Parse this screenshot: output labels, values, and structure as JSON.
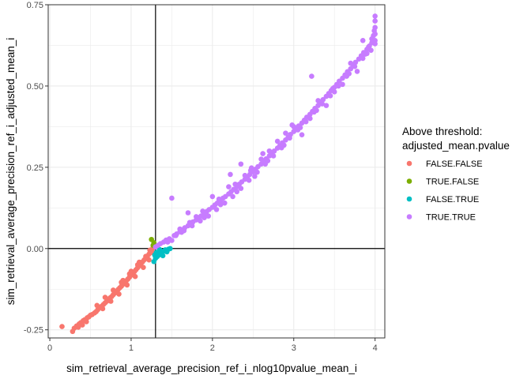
{
  "chart_data": {
    "type": "scatter",
    "xlabel": "sim_retrieval_average_precision_ref_i_nlog10pvalue_mean_i",
    "ylabel": "sim_retrieval_average_precision_ref_i_adjusted_mean_i",
    "xlim": [
      -0.02,
      4.12
    ],
    "ylim": [
      -0.275,
      0.75
    ],
    "x_ticks": [
      0,
      1,
      2,
      3,
      4
    ],
    "x_tick_labels": [
      "0",
      "1",
      "2",
      "3",
      "4"
    ],
    "y_ticks": [
      -0.25,
      0,
      0.25,
      0.5,
      0.75
    ],
    "y_tick_labels": [
      "-0.25",
      "0.00",
      "0.25",
      "0.50",
      "0.75"
    ],
    "grid": true,
    "reference_lines": {
      "vline_x": 1.3,
      "hline_y": 0
    },
    "legend": {
      "title_lines": [
        "Above threshold:",
        "adjusted_mean.pvalue"
      ],
      "position": "right"
    },
    "series": [
      {
        "name": "FALSE.FALSE",
        "color": "#F8766D",
        "points": [
          [
            0.15,
            -0.24
          ],
          [
            0.28,
            -0.255
          ],
          [
            0.3,
            -0.245
          ],
          [
            0.33,
            -0.238
          ],
          [
            0.36,
            -0.232
          ],
          [
            0.38,
            -0.228
          ],
          [
            0.41,
            -0.222
          ],
          [
            0.43,
            -0.219
          ],
          [
            0.46,
            -0.213
          ],
          [
            0.48,
            -0.21
          ],
          [
            0.5,
            -0.205
          ],
          [
            0.52,
            -0.203
          ],
          [
            0.55,
            -0.198
          ],
          [
            0.57,
            -0.194
          ],
          [
            0.59,
            -0.188
          ],
          [
            0.62,
            -0.18
          ],
          [
            0.64,
            -0.177
          ],
          [
            0.66,
            -0.172
          ],
          [
            0.68,
            -0.167
          ],
          [
            0.7,
            -0.162
          ],
          [
            0.72,
            -0.158
          ],
          [
            0.74,
            -0.152
          ],
          [
            0.76,
            -0.148
          ],
          [
            0.78,
            -0.142
          ],
          [
            0.8,
            -0.137
          ],
          [
            0.82,
            -0.132
          ],
          [
            0.84,
            -0.126
          ],
          [
            0.86,
            -0.121
          ],
          [
            0.88,
            -0.116
          ],
          [
            0.9,
            -0.11
          ],
          [
            0.92,
            -0.105
          ],
          [
            0.94,
            -0.099
          ],
          [
            0.96,
            -0.094
          ],
          [
            0.98,
            -0.088
          ],
          [
            1.0,
            -0.082
          ],
          [
            1.02,
            -0.076
          ],
          [
            1.04,
            -0.071
          ],
          [
            1.06,
            -0.065
          ],
          [
            1.08,
            -0.059
          ],
          [
            1.1,
            -0.053
          ],
          [
            1.12,
            -0.047
          ],
          [
            1.14,
            -0.041
          ],
          [
            1.16,
            -0.035
          ],
          [
            1.18,
            -0.029
          ],
          [
            1.2,
            -0.023
          ],
          [
            1.22,
            -0.017
          ],
          [
            1.24,
            -0.012
          ],
          [
            1.25,
            -0.006
          ],
          [
            1.26,
            -0.002
          ],
          [
            1.27,
            0.003
          ],
          [
            0.65,
            -0.185
          ],
          [
            0.75,
            -0.162
          ],
          [
            0.85,
            -0.14
          ],
          [
            0.95,
            -0.112
          ],
          [
            1.05,
            -0.086
          ],
          [
            1.15,
            -0.058
          ],
          [
            1.22,
            -0.035
          ],
          [
            0.9,
            -0.098
          ],
          [
            1.0,
            -0.07
          ],
          [
            1.1,
            -0.042
          ],
          [
            0.58,
            -0.175
          ],
          [
            0.45,
            -0.225
          ],
          [
            0.4,
            -0.235
          ],
          [
            0.35,
            -0.242
          ],
          [
            0.68,
            -0.15
          ],
          [
            0.78,
            -0.128
          ],
          [
            0.88,
            -0.104
          ],
          [
            0.98,
            -0.078
          ],
          [
            1.08,
            -0.05
          ],
          [
            1.18,
            -0.024
          ],
          [
            1.23,
            -0.005
          ],
          [
            1.26,
            -0.012
          ]
        ]
      },
      {
        "name": "TRUE.FALSE",
        "color": "#7CAE00",
        "points": [
          [
            1.25,
            0.028
          ],
          [
            1.28,
            0.018
          ],
          [
            1.27,
            0.01
          ]
        ]
      },
      {
        "name": "FALSE.TRUE",
        "color": "#00BFC4",
        "points": [
          [
            1.28,
            -0.04
          ],
          [
            1.3,
            -0.03
          ],
          [
            1.32,
            -0.025
          ],
          [
            1.34,
            -0.02
          ],
          [
            1.36,
            -0.012
          ],
          [
            1.38,
            -0.015
          ],
          [
            1.4,
            -0.008
          ],
          [
            1.42,
            -0.004
          ],
          [
            1.44,
            -0.01
          ],
          [
            1.46,
            -0.002
          ],
          [
            1.48,
            0.0
          ],
          [
            1.35,
            -0.003
          ],
          [
            1.31,
            -0.012
          ],
          [
            1.39,
            -0.022
          ],
          [
            1.29,
            -0.02
          ]
        ]
      },
      {
        "name": "TRUE.TRUE",
        "color": "#C77CFF",
        "points": [
          [
            1.3,
            0.005
          ],
          [
            1.33,
            0.01
          ],
          [
            1.36,
            0.015
          ],
          [
            1.4,
            0.02
          ],
          [
            1.43,
            0.026
          ],
          [
            1.47,
            0.03
          ],
          [
            1.5,
            0.025
          ],
          [
            1.53,
            0.04
          ],
          [
            1.56,
            0.045
          ],
          [
            1.6,
            0.052
          ],
          [
            1.63,
            0.058
          ],
          [
            1.66,
            0.064
          ],
          [
            1.7,
            0.07
          ],
          [
            1.73,
            0.076
          ],
          [
            1.76,
            0.082
          ],
          [
            1.8,
            0.088
          ],
          [
            1.83,
            0.095
          ],
          [
            1.86,
            0.1
          ],
          [
            1.9,
            0.108
          ],
          [
            1.93,
            0.114
          ],
          [
            1.96,
            0.12
          ],
          [
            2.0,
            0.127
          ],
          [
            2.03,
            0.134
          ],
          [
            2.06,
            0.14
          ],
          [
            2.1,
            0.148
          ],
          [
            2.13,
            0.155
          ],
          [
            2.16,
            0.16
          ],
          [
            2.2,
            0.168
          ],
          [
            2.23,
            0.175
          ],
          [
            2.26,
            0.182
          ],
          [
            2.3,
            0.19
          ],
          [
            2.33,
            0.198
          ],
          [
            2.36,
            0.205
          ],
          [
            2.4,
            0.213
          ],
          [
            2.43,
            0.22
          ],
          [
            2.46,
            0.228
          ],
          [
            2.5,
            0.236
          ],
          [
            2.53,
            0.244
          ],
          [
            2.56,
            0.252
          ],
          [
            2.6,
            0.26
          ],
          [
            2.63,
            0.268
          ],
          [
            2.66,
            0.276
          ],
          [
            2.7,
            0.285
          ],
          [
            2.73,
            0.292
          ],
          [
            2.76,
            0.3
          ],
          [
            2.8,
            0.309
          ],
          [
            2.83,
            0.317
          ],
          [
            2.86,
            0.325
          ],
          [
            2.9,
            0.334
          ],
          [
            2.93,
            0.342
          ],
          [
            2.96,
            0.351
          ],
          [
            3.0,
            0.36
          ],
          [
            3.03,
            0.368
          ],
          [
            3.06,
            0.377
          ],
          [
            3.1,
            0.386
          ],
          [
            3.13,
            0.395
          ],
          [
            3.16,
            0.404
          ],
          [
            3.2,
            0.413
          ],
          [
            3.23,
            0.422
          ],
          [
            3.26,
            0.431
          ],
          [
            3.3,
            0.44
          ],
          [
            3.33,
            0.45
          ],
          [
            3.36,
            0.458
          ],
          [
            3.4,
            0.468
          ],
          [
            3.43,
            0.477
          ],
          [
            3.46,
            0.486
          ],
          [
            3.5,
            0.496
          ],
          [
            3.53,
            0.505
          ],
          [
            3.56,
            0.515
          ],
          [
            3.6,
            0.524
          ],
          [
            3.63,
            0.534
          ],
          [
            3.66,
            0.544
          ],
          [
            3.7,
            0.553
          ],
          [
            3.73,
            0.563
          ],
          [
            3.76,
            0.573
          ],
          [
            3.8,
            0.583
          ],
          [
            3.83,
            0.593
          ],
          [
            3.86,
            0.603
          ],
          [
            3.9,
            0.613
          ],
          [
            3.93,
            0.623
          ],
          [
            3.96,
            0.633
          ],
          [
            4.0,
            0.64
          ],
          [
            4.0,
            0.66
          ],
          [
            4.0,
            0.68
          ],
          [
            4.0,
            0.7
          ],
          [
            4.0,
            0.715
          ],
          [
            4.0,
            0.63
          ],
          [
            3.98,
            0.655
          ],
          [
            3.95,
            0.61
          ],
          [
            3.85,
            0.585
          ],
          [
            3.75,
            0.56
          ],
          [
            3.65,
            0.53
          ],
          [
            3.55,
            0.5
          ],
          [
            3.45,
            0.47
          ],
          [
            3.35,
            0.445
          ],
          [
            3.25,
            0.42
          ],
          [
            3.15,
            0.39
          ],
          [
            3.05,
            0.365
          ],
          [
            2.95,
            0.34
          ],
          [
            2.85,
            0.31
          ],
          [
            2.75,
            0.285
          ],
          [
            2.65,
            0.26
          ],
          [
            2.55,
            0.235
          ],
          [
            2.45,
            0.21
          ],
          [
            2.35,
            0.185
          ],
          [
            2.25,
            0.16
          ],
          [
            2.15,
            0.14
          ],
          [
            2.05,
            0.12
          ],
          [
            1.95,
            0.1
          ],
          [
            1.85,
            0.085
          ],
          [
            1.75,
            0.07
          ],
          [
            1.65,
            0.055
          ],
          [
            1.55,
            0.04
          ],
          [
            1.45,
            0.02
          ],
          [
            3.85,
            0.64
          ],
          [
            3.22,
            0.53
          ],
          [
            2.98,
            0.38
          ],
          [
            2.62,
            0.292
          ],
          [
            2.52,
            0.222
          ],
          [
            2.47,
            0.24
          ],
          [
            2.35,
            0.26
          ],
          [
            2.22,
            0.228
          ],
          [
            2.0,
            0.16
          ],
          [
            1.5,
            0.155
          ],
          [
            1.62,
            0.05
          ],
          [
            1.7,
            0.11
          ],
          [
            1.8,
            0.098
          ],
          [
            3.1,
            0.35
          ],
          [
            3.4,
            0.44
          ],
          [
            3.6,
            0.505
          ],
          [
            3.78,
            0.545
          ],
          [
            2.8,
            0.33
          ],
          [
            2.7,
            0.3
          ],
          [
            2.6,
            0.275
          ],
          [
            2.4,
            0.225
          ],
          [
            2.1,
            0.135
          ],
          [
            1.9,
            0.095
          ],
          [
            3.3,
            0.455
          ],
          [
            3.5,
            0.482
          ],
          [
            3.7,
            0.57
          ],
          [
            3.9,
            0.6
          ],
          [
            2.9,
            0.355
          ],
          [
            3.2,
            0.4
          ],
          [
            3.0,
            0.375
          ],
          [
            2.2,
            0.19
          ],
          [
            2.3,
            0.175
          ],
          [
            1.6,
            0.06
          ],
          [
            1.72,
            0.08
          ],
          [
            1.88,
            0.115
          ],
          [
            2.08,
            0.152
          ],
          [
            2.28,
            0.198
          ],
          [
            2.48,
            0.248
          ],
          [
            2.68,
            0.27
          ],
          [
            2.88,
            0.318
          ],
          [
            3.08,
            0.372
          ],
          [
            3.28,
            0.425
          ],
          [
            3.48,
            0.492
          ],
          [
            3.68,
            0.538
          ],
          [
            3.88,
            0.598
          ],
          [
            3.92,
            0.62
          ],
          [
            3.96,
            0.645
          ],
          [
            3.99,
            0.67
          ]
        ]
      }
    ]
  }
}
